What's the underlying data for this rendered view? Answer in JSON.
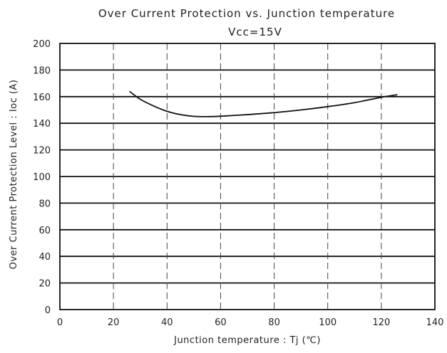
{
  "chart_data": {
    "type": "line",
    "title": "Over Current Protection vs. Junction temperature",
    "subtitle": "Vcc=15V",
    "xlabel": "Junction temperature : Tj (℃)",
    "ylabel": "Over Current Protection Level : Ioc (A)",
    "xlim": [
      0,
      140
    ],
    "ylim": [
      0,
      200
    ],
    "x_ticks": [
      "0",
      "20",
      "40",
      "60",
      "80",
      "100",
      "120",
      "140"
    ],
    "y_ticks": [
      "0",
      "20",
      "40",
      "60",
      "80",
      "100",
      "120",
      "140",
      "160",
      "180",
      "200"
    ],
    "grid": true,
    "series": [
      {
        "values": [
          {
            "x": 26,
            "y": 164
          },
          {
            "x": 30,
            "y": 158
          },
          {
            "x": 35,
            "y": 153
          },
          {
            "x": 40,
            "y": 149
          },
          {
            "x": 45,
            "y": 146.5
          },
          {
            "x": 50,
            "y": 145.2
          },
          {
            "x": 55,
            "y": 145
          },
          {
            "x": 60,
            "y": 145.3
          },
          {
            "x": 70,
            "y": 146.5
          },
          {
            "x": 80,
            "y": 148
          },
          {
            "x": 90,
            "y": 150
          },
          {
            "x": 100,
            "y": 152.5
          },
          {
            "x": 110,
            "y": 155.5
          },
          {
            "x": 120,
            "y": 159.5
          },
          {
            "x": 126,
            "y": 161.5
          }
        ]
      }
    ]
  }
}
